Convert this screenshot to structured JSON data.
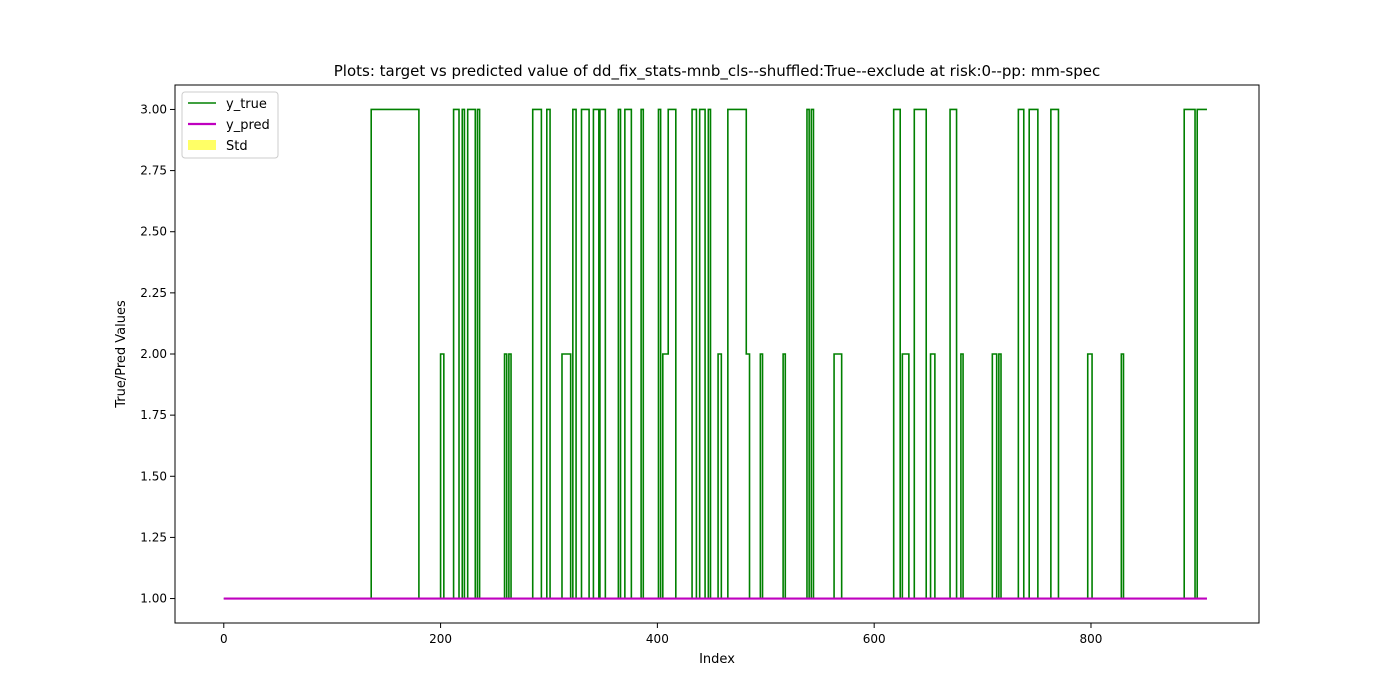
{
  "chart_data": {
    "type": "line",
    "title": "Plots: target vs predicted value of dd_fix_stats-mnb_cls--shuffled:True--exclude at risk:0--pp: mm-spec",
    "xlabel": "Index",
    "ylabel": "True/Pred Values",
    "xlim": [
      -45,
      955
    ],
    "ylim": [
      0.9,
      3.1
    ],
    "xticks": [
      0,
      200,
      400,
      600,
      800
    ],
    "xtick_labels": [
      "0",
      "200",
      "400",
      "600",
      "800"
    ],
    "yticks": [
      1.0,
      1.25,
      1.5,
      1.75,
      2.0,
      2.25,
      2.5,
      2.75,
      3.0
    ],
    "ytick_labels": [
      "1.00",
      "1.25",
      "1.50",
      "1.75",
      "2.00",
      "2.25",
      "2.50",
      "2.75",
      "3.00"
    ],
    "grid": false,
    "legend_position": "top-left",
    "legend": [
      {
        "label": "y_true",
        "kind": "line",
        "color": "#008000"
      },
      {
        "label": "y_pred",
        "kind": "line",
        "color": "#bf00bf"
      },
      {
        "label": "Std",
        "kind": "patch",
        "color": "#ffff66"
      }
    ],
    "series": [
      {
        "name": "y_true",
        "color": "#008000",
        "step": true,
        "segments": [
          [
            0,
            1
          ],
          [
            136,
            3
          ],
          [
            180,
            1
          ],
          [
            200,
            2
          ],
          [
            203,
            1
          ],
          [
            212,
            3
          ],
          [
            217,
            1
          ],
          [
            220,
            3
          ],
          [
            222,
            1
          ],
          [
            225,
            3
          ],
          [
            232,
            1
          ],
          [
            234,
            3
          ],
          [
            236,
            1
          ],
          [
            259,
            2
          ],
          [
            261,
            1
          ],
          [
            263,
            2
          ],
          [
            265,
            1
          ],
          [
            285,
            3
          ],
          [
            293,
            1
          ],
          [
            298,
            3
          ],
          [
            301,
            1
          ],
          [
            312,
            2
          ],
          [
            320,
            1
          ],
          [
            322,
            3
          ],
          [
            325,
            1
          ],
          [
            330,
            3
          ],
          [
            337,
            1
          ],
          [
            341,
            3
          ],
          [
            346,
            1
          ],
          [
            347,
            3
          ],
          [
            352,
            1
          ],
          [
            364,
            3
          ],
          [
            366,
            1
          ],
          [
            370,
            3
          ],
          [
            376,
            1
          ],
          [
            385,
            3
          ],
          [
            387,
            1
          ],
          [
            401,
            3
          ],
          [
            403,
            1
          ],
          [
            405,
            2
          ],
          [
            410,
            3
          ],
          [
            417,
            1
          ],
          [
            432,
            3
          ],
          [
            436,
            1
          ],
          [
            439,
            3
          ],
          [
            444,
            1
          ],
          [
            447,
            3
          ],
          [
            449,
            1
          ],
          [
            456,
            2
          ],
          [
            459,
            1
          ],
          [
            465,
            3
          ],
          [
            482,
            2
          ],
          [
            485,
            1
          ],
          [
            495,
            2
          ],
          [
            497,
            1
          ],
          [
            516,
            2
          ],
          [
            518,
            1
          ],
          [
            538,
            3
          ],
          [
            540,
            1
          ],
          [
            542,
            3
          ],
          [
            544,
            1
          ],
          [
            563,
            2
          ],
          [
            570,
            1
          ],
          [
            618,
            3
          ],
          [
            624,
            1
          ],
          [
            626,
            2
          ],
          [
            632,
            1
          ],
          [
            637,
            3
          ],
          [
            648,
            1
          ],
          [
            652,
            2
          ],
          [
            656,
            1
          ],
          [
            670,
            3
          ],
          [
            676,
            1
          ],
          [
            680,
            2
          ],
          [
            682,
            1
          ],
          [
            709,
            2
          ],
          [
            713,
            1
          ],
          [
            715,
            2
          ],
          [
            717,
            1
          ],
          [
            733,
            3
          ],
          [
            738,
            1
          ],
          [
            743,
            3
          ],
          [
            751,
            1
          ],
          [
            763,
            3
          ],
          [
            770,
            1
          ],
          [
            797,
            2
          ],
          [
            801,
            1
          ],
          [
            828,
            2
          ],
          [
            830,
            1
          ],
          [
            886,
            3
          ],
          [
            896,
            1
          ],
          [
            898,
            3
          ],
          [
            907,
            3
          ]
        ]
      },
      {
        "name": "y_pred",
        "color": "#bf00bf",
        "step": false,
        "x": [
          0,
          907
        ],
        "values": [
          1,
          1
        ]
      }
    ]
  }
}
